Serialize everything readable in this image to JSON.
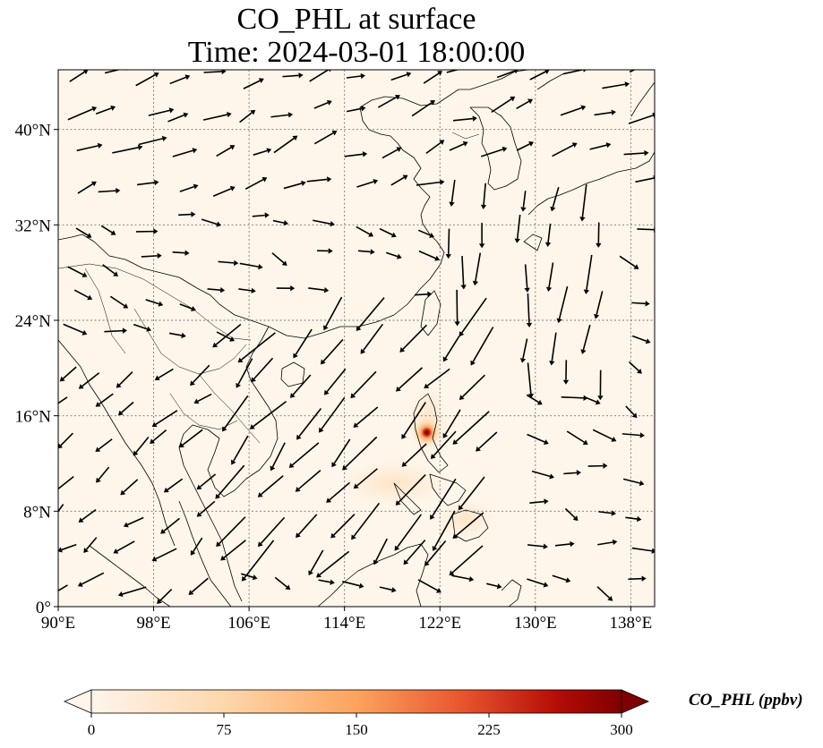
{
  "title": {
    "line1": "CO_PHL at surface",
    "line2": "Time: 2024-03-01 18:00:00"
  },
  "map": {
    "lon_range": [
      90,
      140
    ],
    "lat_range": [
      0,
      45
    ],
    "background_color": "#fef6ea",
    "gridlines": true,
    "lat_ticks": [
      {
        "value": 0,
        "label": "0°"
      },
      {
        "value": 8,
        "label": "8°N"
      },
      {
        "value": 16,
        "label": "16°N"
      },
      {
        "value": 24,
        "label": "24°N"
      },
      {
        "value": 32,
        "label": "32°N"
      },
      {
        "value": 40,
        "label": "40°N"
      }
    ],
    "lon_ticks": [
      {
        "value": 90,
        "label": "90°E"
      },
      {
        "value": 98,
        "label": "98°E"
      },
      {
        "value": 106,
        "label": "106°E"
      },
      {
        "value": 114,
        "label": "114°E"
      },
      {
        "value": 122,
        "label": "122°E"
      },
      {
        "value": 130,
        "label": "130°E"
      },
      {
        "value": 138,
        "label": "138°E"
      }
    ],
    "hotspot": {
      "lon": 120.9,
      "lat": 14.6
    }
  },
  "colorbar": {
    "label": "CO_PHL (ppbv)",
    "colormap": [
      "#fff5eb",
      "#fdd7ac",
      "#fda35d",
      "#e8552e",
      "#b40c06",
      "#7f0000"
    ],
    "ticks": [
      0,
      75,
      150,
      225,
      300
    ],
    "range": [
      0,
      300
    ]
  }
}
